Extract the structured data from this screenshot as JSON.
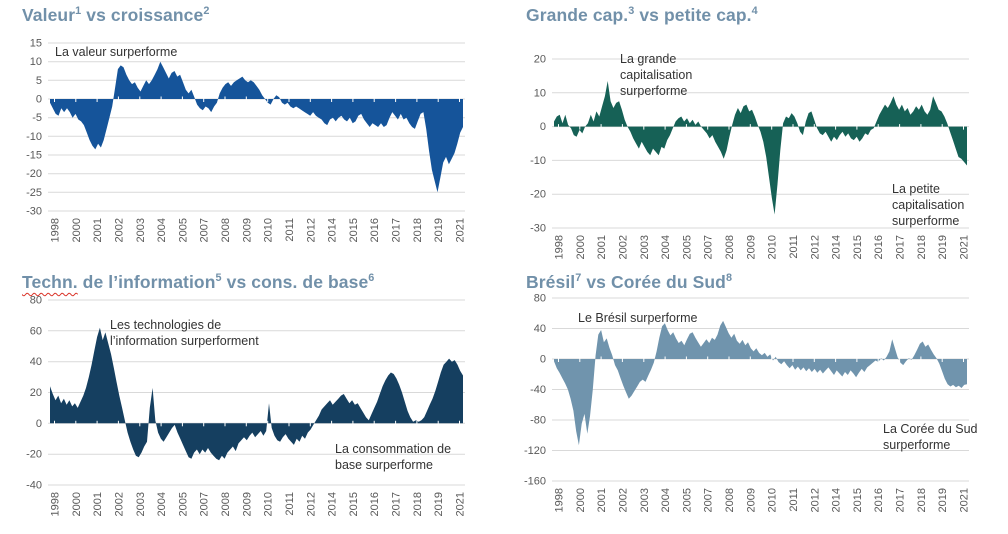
{
  "page": {
    "background": "#ffffff",
    "grid_color": "#d9d9d9",
    "axis_label_color": "#595959",
    "title_color": "#7190a9",
    "annotation_color": "#333333"
  },
  "chart_data": [
    {
      "type": "area",
      "title_parts": [
        {
          "text": "Valeur"
        },
        {
          "sup": "1"
        },
        {
          "text": " vs croissance"
        },
        {
          "sup": "2"
        }
      ],
      "color": "#15549a",
      "annotations": [
        {
          "text": "La valeur surperforme"
        }
      ],
      "y_ticks": [
        15,
        10,
        5,
        0,
        -5,
        -10,
        -15,
        -20,
        -25,
        -30
      ],
      "ylim": [
        -30,
        15
      ],
      "x_tick_labels": [
        "1998",
        "2000",
        "2001",
        "2002",
        "2003",
        "2004",
        "2005",
        "2007",
        "2008",
        "2009",
        "2010",
        "2011",
        "2012",
        "2014",
        "2015",
        "2016",
        "2017",
        "2018",
        "2019",
        "2021"
      ],
      "values": [
        -1,
        -2.5,
        -4,
        -4.5,
        -2.5,
        -3.5,
        -2.5,
        -3.5,
        -5,
        -4,
        -5.5,
        -6,
        -7,
        -9,
        -11,
        -12.5,
        -13.5,
        -12,
        -13,
        -11,
        -8,
        -5,
        -2,
        3,
        8,
        9,
        8.5,
        6.5,
        5,
        4,
        4.5,
        3,
        2,
        3.5,
        5,
        4,
        5,
        6.5,
        8,
        10,
        8.5,
        7,
        5.5,
        7,
        7.5,
        6,
        6.5,
        4.5,
        2.5,
        1.5,
        2.5,
        0.5,
        -1.5,
        -2.5,
        -3,
        -2,
        -2.5,
        -3.5,
        -2,
        -1,
        1.5,
        3,
        4,
        4.5,
        3.5,
        4.5,
        5,
        5.5,
        6,
        5,
        4.5,
        5,
        4.5,
        3.5,
        2.5,
        1,
        0,
        -1,
        -1.5,
        0,
        1,
        0.5,
        -1,
        -1.5,
        -1,
        -2,
        -2.5,
        -2,
        -2.5,
        -3,
        -3.5,
        -4,
        -4.5,
        -3.5,
        -4.5,
        -5,
        -5.5,
        -6.5,
        -7,
        -5.5,
        -5,
        -6,
        -5,
        -4.5,
        -5.5,
        -6,
        -5,
        -6.5,
        -6,
        -4.5,
        -4,
        -5.5,
        -6.5,
        -7.5,
        -6.5,
        -7,
        -7.5,
        -6.5,
        -7.5,
        -7,
        -5,
        -3.5,
        -4.5,
        -5.5,
        -4,
        -5.5,
        -5,
        -6.5,
        -7.5,
        -8,
        -6,
        -4,
        -3.5,
        -8,
        -14,
        -19,
        -22,
        -25,
        -21,
        -17,
        -15.5,
        -17.5,
        -16,
        -14.5,
        -12,
        -9,
        -7.5
      ]
    },
    {
      "type": "area",
      "title_parts": [
        {
          "text": "Grande cap."
        },
        {
          "sup": "3"
        },
        {
          "text": " vs petite cap."
        },
        {
          "sup": "4"
        }
      ],
      "color": "#166156",
      "annotations": [
        {
          "text": "La grande\ncapitalisation\nsurperforme"
        },
        {
          "text": "La petite\ncapitalisation\nsurperforme"
        }
      ],
      "y_ticks": [
        20,
        10,
        0,
        -10,
        -20,
        -30
      ],
      "ylim": [
        -30,
        20
      ],
      "x_tick_labels": [
        "1998",
        "2000",
        "2001",
        "2002",
        "2003",
        "2004",
        "2005",
        "2007",
        "2008",
        "2009",
        "2010",
        "2011",
        "2012",
        "2014",
        "2015",
        "2016",
        "2017",
        "2018",
        "2019",
        "2021"
      ],
      "values": [
        1.5,
        3,
        3.5,
        1,
        3.5,
        0.5,
        -0.5,
        -2.5,
        -3,
        -1,
        -2,
        0,
        1,
        3.5,
        1.5,
        4.5,
        3,
        6,
        9,
        13.5,
        7.5,
        5.5,
        7,
        7.5,
        5,
        2,
        0,
        -1.5,
        -3.5,
        -5,
        -6.5,
        -4.5,
        -6,
        -7.5,
        -8.5,
        -6.5,
        -7.5,
        -8.5,
        -6,
        -6.5,
        -4,
        -2.5,
        -0.5,
        1.5,
        2.5,
        3,
        1.5,
        2.5,
        1,
        2,
        0.5,
        1.5,
        0,
        -1,
        -2,
        -3.5,
        -2.5,
        -4.5,
        -6,
        -7.5,
        -9.5,
        -7,
        -3,
        0.5,
        3.5,
        5.5,
        4,
        6,
        6.5,
        4.5,
        5,
        3,
        0.5,
        -1.5,
        -4.5,
        -9,
        -15,
        -21,
        -26,
        -17,
        -7,
        1,
        3,
        2.5,
        4,
        3,
        1,
        -1.5,
        -2.5,
        1.5,
        4,
        4.5,
        2,
        -0.5,
        -2,
        -2.5,
        -1.5,
        -3,
        -4.5,
        -3,
        -4,
        -2.5,
        -1.5,
        -3,
        -2,
        -3.5,
        -4,
        -3,
        -4.5,
        -3.5,
        -2,
        -2.5,
        -1,
        -0.5,
        1.5,
        3.5,
        5,
        6.5,
        5.5,
        7,
        9,
        6.5,
        5,
        6.5,
        4.5,
        5.5,
        3.5,
        4.5,
        6,
        5,
        6.5,
        4.5,
        3.5,
        5,
        9,
        7,
        5,
        4.5,
        3,
        1,
        -1.5,
        -4,
        -6.5,
        -9,
        -9.5,
        -10.5,
        -11.5
      ]
    },
    {
      "type": "area",
      "title_parts": [
        {
          "text": "Techn.",
          "wavy": true
        },
        {
          "text": " de l’information"
        },
        {
          "sup": "5"
        },
        {
          "text": " vs cons. de base"
        },
        {
          "sup": "6"
        }
      ],
      "color": "#153f60",
      "annotations": [
        {
          "text": "Les technologies de\nl’information surperforment"
        },
        {
          "text": "La consommation de\nbase surperforme"
        }
      ],
      "y_ticks": [
        80,
        60,
        40,
        20,
        0,
        -20,
        -40
      ],
      "ylim": [
        -40,
        80
      ],
      "x_tick_labels": [
        "1998",
        "2000",
        "2001",
        "2002",
        "2003",
        "2004",
        "2005",
        "2007",
        "2008",
        "2009",
        "2010",
        "2011",
        "2012",
        "2014",
        "2015",
        "2016",
        "2017",
        "2018",
        "2019",
        "2021"
      ],
      "values": [
        24,
        19,
        15,
        18,
        13,
        16,
        12,
        15,
        11,
        13,
        10,
        14,
        18,
        23,
        30,
        38,
        47,
        56,
        62,
        54,
        59,
        52,
        45,
        36,
        27,
        18,
        10,
        2,
        -6,
        -12,
        -17,
        -21,
        -22,
        -19,
        -15,
        -12,
        10,
        23,
        2,
        -6,
        -10,
        -12,
        -9,
        -6,
        -3,
        -1,
        -6,
        -10,
        -14,
        -18,
        -22,
        -23,
        -19,
        -17,
        -20,
        -17,
        -19,
        -16,
        -19,
        -21,
        -23,
        -24,
        -21,
        -23,
        -19,
        -17,
        -15,
        -18,
        -13,
        -11,
        -9,
        -11,
        -8,
        -6,
        -9,
        -7,
        -5,
        -8,
        -5,
        13,
        -3,
        -8,
        -11,
        -12,
        -9,
        -7,
        -10,
        -12,
        -14,
        -10,
        -12,
        -8,
        -10,
        -6,
        -4,
        -1,
        2,
        5,
        9,
        11,
        13,
        15,
        12,
        14,
        16,
        18,
        19,
        16,
        13,
        15,
        12,
        13,
        10,
        7,
        4,
        2,
        6,
        10,
        14,
        19,
        24,
        28,
        31,
        33,
        32,
        29,
        25,
        20,
        14,
        8,
        4,
        1,
        2,
        1,
        2,
        4,
        8,
        12,
        16,
        21,
        27,
        33,
        38,
        40,
        42,
        40,
        41,
        38,
        34,
        31
      ]
    },
    {
      "type": "area",
      "title_parts": [
        {
          "text": "Brésil"
        },
        {
          "sup": "7"
        },
        {
          "text": " vs Corée du Sud"
        },
        {
          "sup": "8"
        }
      ],
      "color": "#7094ad",
      "annotations": [
        {
          "text": "Le Brésil surperforme"
        },
        {
          "text": "La Corée du Sud\nsurperforme"
        }
      ],
      "y_ticks": [
        80,
        40,
        0,
        -40,
        -80,
        -120,
        -160
      ],
      "ylim": [
        -160,
        80
      ],
      "x_tick_labels": [
        "1998",
        "2000",
        "2001",
        "2002",
        "2003",
        "2004",
        "2005",
        "2007",
        "2008",
        "2009",
        "2010",
        "2011",
        "2012",
        "2014",
        "2015",
        "2016",
        "2017",
        "2018",
        "2019",
        "2021"
      ],
      "values": [
        -3,
        -12,
        -18,
        -25,
        -32,
        -40,
        -52,
        -68,
        -95,
        -113,
        -85,
        -72,
        -98,
        -75,
        -40,
        5,
        32,
        38,
        22,
        27,
        15,
        5,
        -8,
        -15,
        -25,
        -35,
        -44,
        -52,
        -48,
        -42,
        -36,
        -30,
        -27,
        -30,
        -22,
        -14,
        -5,
        10,
        28,
        43,
        47,
        38,
        31,
        35,
        27,
        21,
        24,
        18,
        26,
        33,
        35,
        28,
        22,
        16,
        21,
        26,
        21,
        28,
        25,
        32,
        44,
        50,
        42,
        34,
        28,
        33,
        24,
        20,
        25,
        18,
        22,
        14,
        10,
        14,
        8,
        5,
        8,
        3,
        6,
        -2,
        3,
        -4,
        -7,
        -3,
        -8,
        -12,
        -8,
        -14,
        -10,
        -15,
        -11,
        -16,
        -12,
        -17,
        -13,
        -18,
        -14,
        -19,
        -15,
        -11,
        -16,
        -21,
        -15,
        -19,
        -23,
        -17,
        -21,
        -15,
        -19,
        -24,
        -18,
        -13,
        -17,
        -11,
        -8,
        -5,
        -2,
        -4,
        1,
        -2,
        3,
        10,
        26,
        14,
        2,
        -5,
        -8,
        -3,
        1,
        -1,
        5,
        12,
        20,
        23,
        16,
        19,
        12,
        6,
        1,
        -6,
        -16,
        -26,
        -33,
        -36,
        -34,
        -37,
        -35,
        -38,
        -34,
        -33
      ]
    }
  ]
}
